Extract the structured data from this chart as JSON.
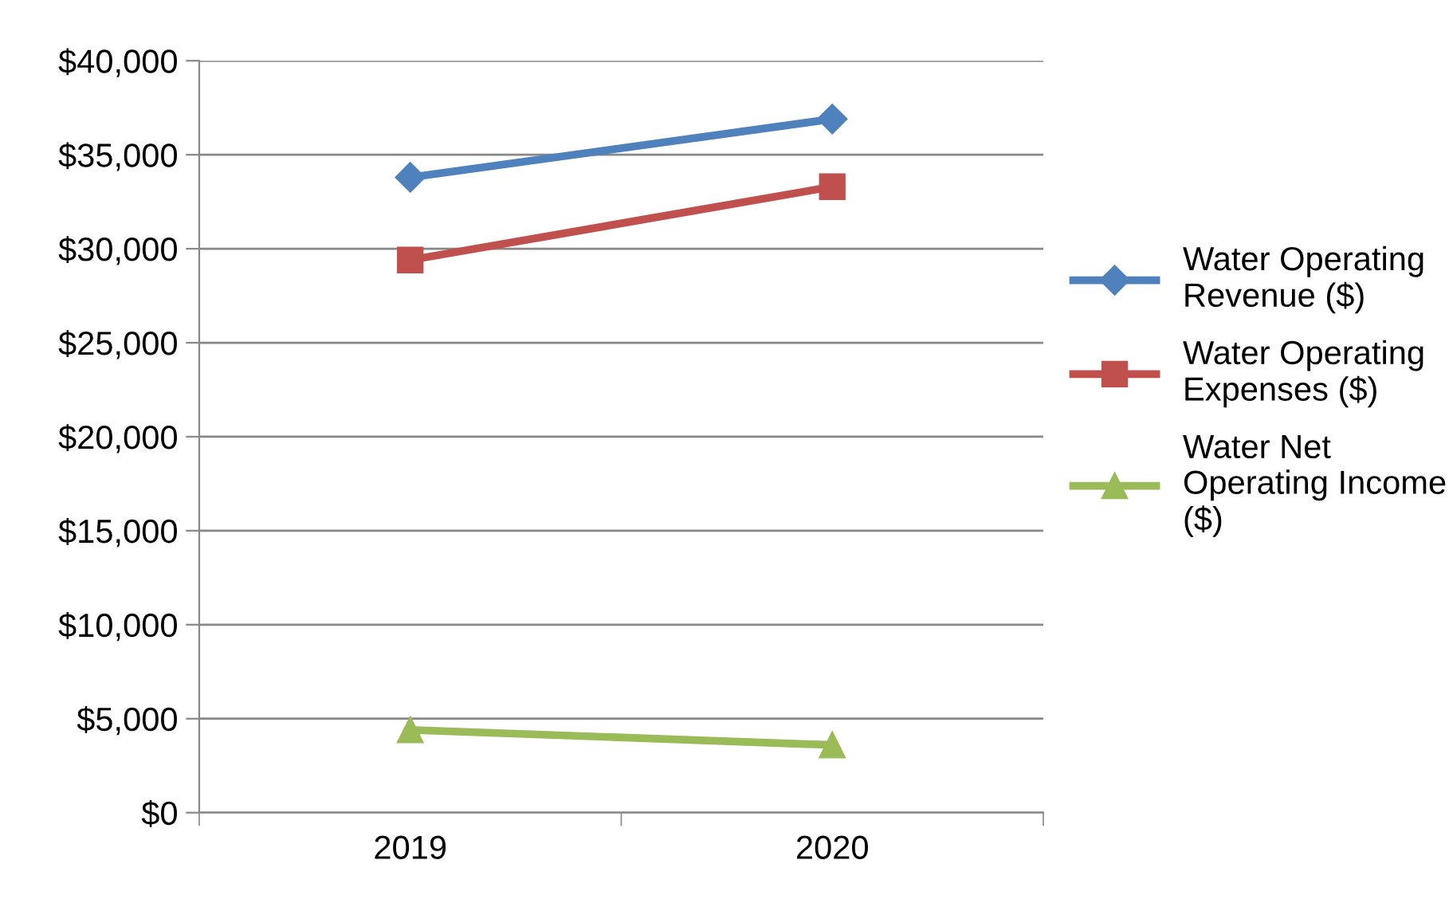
{
  "chart_data": {
    "type": "line",
    "categories": [
      "2019",
      "2020"
    ],
    "series": [
      {
        "name": "Water Operating Revenue ($)",
        "color": "#4f81bd",
        "marker": "diamond",
        "values": [
          33800,
          36900
        ]
      },
      {
        "name": "Water Operating Expenses ($)",
        "color": "#c0504d",
        "marker": "square",
        "values": [
          29400,
          33300
        ]
      },
      {
        "name": "Water Net Operating Income ($)",
        "color": "#9bbb59",
        "marker": "triangle",
        "values": [
          4400,
          3600
        ]
      }
    ],
    "ylim": [
      0,
      40000
    ],
    "yticks": [
      {
        "value": 0,
        "label": "$0"
      },
      {
        "value": 5000,
        "label": "$5,000"
      },
      {
        "value": 10000,
        "label": "$10,000"
      },
      {
        "value": 15000,
        "label": "$15,000"
      },
      {
        "value": 20000,
        "label": "$20,000"
      },
      {
        "value": 25000,
        "label": "$25,000"
      },
      {
        "value": 30000,
        "label": "$30,000"
      },
      {
        "value": 35000,
        "label": "$35,000"
      },
      {
        "value": 40000,
        "label": "$40,000"
      }
    ],
    "grid": "y",
    "legend": "right",
    "line_style": "solid"
  }
}
